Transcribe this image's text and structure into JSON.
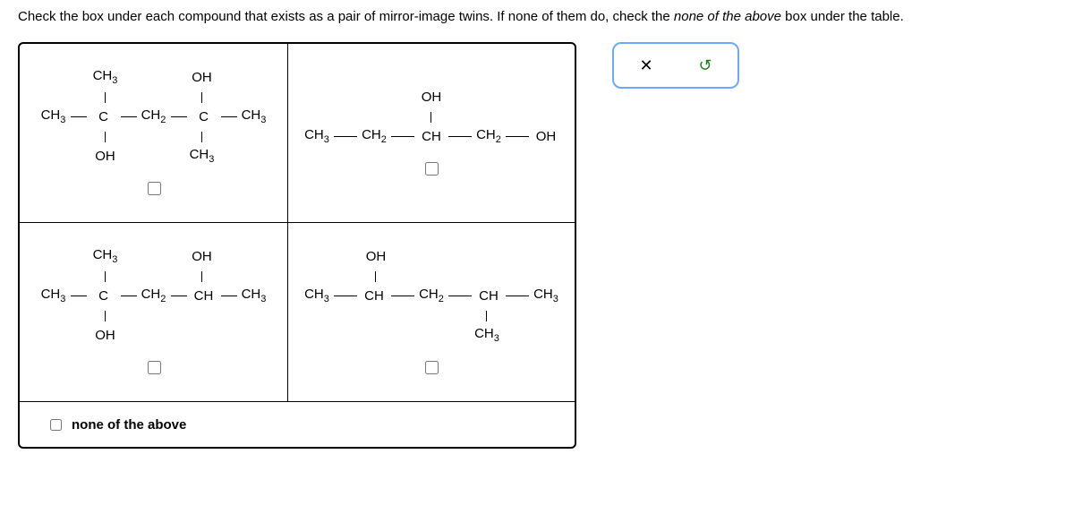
{
  "prompt_pre": "Check the box under each compound that exists as a pair of mirror-image twins. If none of them do, check the ",
  "prompt_em": "none of the above",
  "prompt_post": " box under the table.",
  "none_label": "none of the above",
  "buttons": {
    "close_glyph": "✕",
    "reset_glyph": "↺"
  },
  "molecules": {
    "a": {
      "top_left": "CH",
      "top_left_sub": "3",
      "top_right": "OH",
      "main_l": "CH",
      "main_l_sub": "3",
      "c1": "C",
      "mid": "CH",
      "mid_sub": "2",
      "c2": "C",
      "main_r": "CH",
      "main_r_sub": "3",
      "bot_left": "OH",
      "bot_right": "CH",
      "bot_right_sub": "3"
    },
    "b": {
      "top": "OH",
      "l1": "CH",
      "l1_sub": "3",
      "l2": "CH",
      "l2_sub": "2",
      "c": "CH",
      "r1": "CH",
      "r1_sub": "2",
      "r2": "OH"
    },
    "c": {
      "top_left": "CH",
      "top_left_sub": "3",
      "top_right": "OH",
      "main_l": "CH",
      "main_l_sub": "3",
      "c1": "C",
      "mid": "CH",
      "mid_sub": "2",
      "c2": "CH",
      "main_r": "CH",
      "main_r_sub": "3",
      "bot_left": "OH"
    },
    "d": {
      "top": "OH",
      "l": "CH",
      "l_sub": "3",
      "c1": "CH",
      "mid": "CH",
      "mid_sub": "2",
      "c2": "CH",
      "r": "CH",
      "r_sub": "3",
      "bot": "CH",
      "bot_sub": "3"
    }
  }
}
